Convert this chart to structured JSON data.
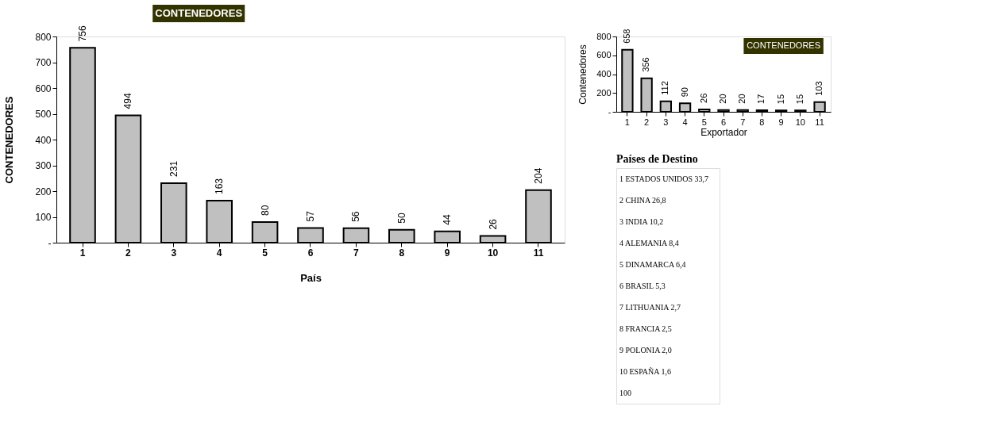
{
  "chart_data": [
    {
      "type": "bar",
      "title": "CONTENEDORES",
      "xlabel": "País",
      "ylabel": "CONTENEDORES",
      "categories": [
        "1",
        "2",
        "3",
        "4",
        "5",
        "6",
        "7",
        "8",
        "9",
        "10",
        "11"
      ],
      "values": [
        756,
        494,
        231,
        163,
        80,
        57,
        56,
        50,
        44,
        26,
        204
      ],
      "color": "#c0c0c0",
      "ylim": [
        0,
        800
      ],
      "yticks": [
        {
          "value": 0,
          "label": "-"
        },
        100,
        200,
        300,
        400,
        500,
        600,
        700,
        800
      ],
      "grid": false,
      "data_labels": true
    },
    {
      "type": "bar",
      "title": "CONTENEDORES",
      "xlabel": "Exportador",
      "ylabel": "Contenedores",
      "categories": [
        "1",
        "2",
        "3",
        "4",
        "5",
        "6",
        "7",
        "8",
        "9",
        "10",
        "11"
      ],
      "values": [
        658,
        356,
        112,
        90,
        26,
        20,
        20,
        17,
        15,
        15,
        103
      ],
      "color": "#c0c0c0",
      "ylim": [
        0,
        800
      ],
      "yticks": [
        {
          "value": 0,
          "label": "-"
        },
        200,
        400,
        600,
        800
      ],
      "grid": false,
      "data_labels": true
    },
    {
      "type": "other",
      "title": "Países de Destino",
      "annotations": [
        "1 ESTADOS UNIDOS 33,7",
        "2 CHINA 26,8",
        "3 INDIA 10,2",
        "4 ALEMANIA 8,4",
        "5 DINAMARCA 6,4",
        "6 BRASIL 5,3",
        "7 LITHUANIA 2,7",
        "8 FRANCIA 2,5",
        "9 POLONIA 2,0",
        "10 ESPAÑA 1,6",
        "100"
      ]
    }
  ]
}
